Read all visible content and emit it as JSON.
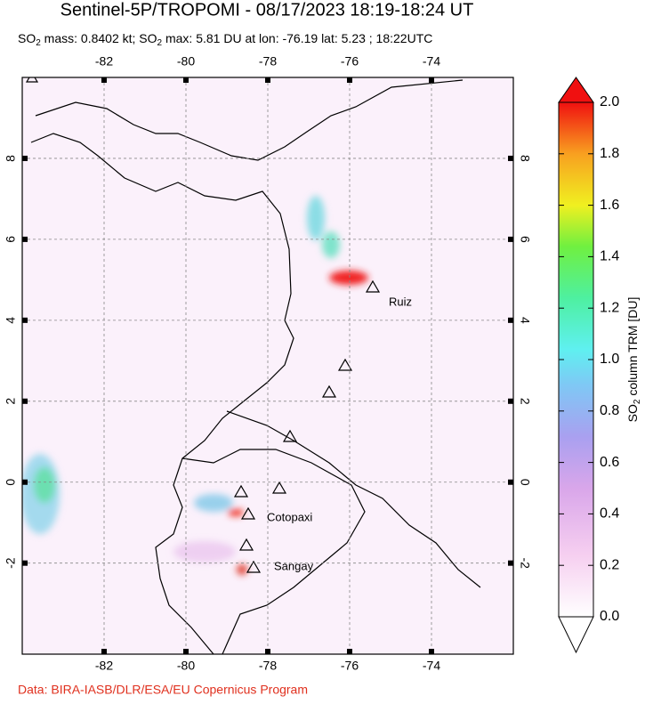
{
  "chart_data": {
    "type": "map",
    "title": "Sentinel-5P/TROPOMI - 08/17/2023 18:19-18:24 UT",
    "subtitle": [
      "SO",
      "2",
      " mass: 0.8402 kt; SO",
      "2",
      " max: 5.81 DU at lon: -76.19 lat: 5.23 ; 18:22UTC"
    ],
    "xlim": [
      -84,
      -72
    ],
    "ylim": [
      -4.25,
      10
    ],
    "xticks": [
      -82,
      -80,
      -78,
      -76,
      -74
    ],
    "yticks": [
      -2,
      0,
      2,
      4,
      6,
      8
    ],
    "grid": true,
    "volcano_labels": [
      "Ruiz",
      "Cotopaxi",
      "Sangay"
    ],
    "colorbar": {
      "label": [
        "SO",
        "2",
        " column TRM [DU]"
      ],
      "lim": [
        0,
        2
      ],
      "ticks": [
        {
          "value": 0,
          "label": "0.0"
        },
        {
          "value": 0.2,
          "label": "0.2"
        },
        {
          "value": 0.4,
          "label": "0.4"
        },
        {
          "value": 0.6,
          "label": "0.6"
        },
        {
          "value": 0.8,
          "label": "0.8"
        },
        {
          "value": 1,
          "label": "1.0"
        },
        {
          "value": 1.2,
          "label": "1.2"
        },
        {
          "value": 1.4,
          "label": "1.4"
        },
        {
          "value": 1.6,
          "label": "1.6"
        },
        {
          "value": 1.8,
          "label": "1.8"
        },
        {
          "value": 2,
          "label": "2.0"
        }
      ]
    },
    "credit": "Data: BIRA-IASB/DLR/ESA/EU Copernicus Program"
  }
}
